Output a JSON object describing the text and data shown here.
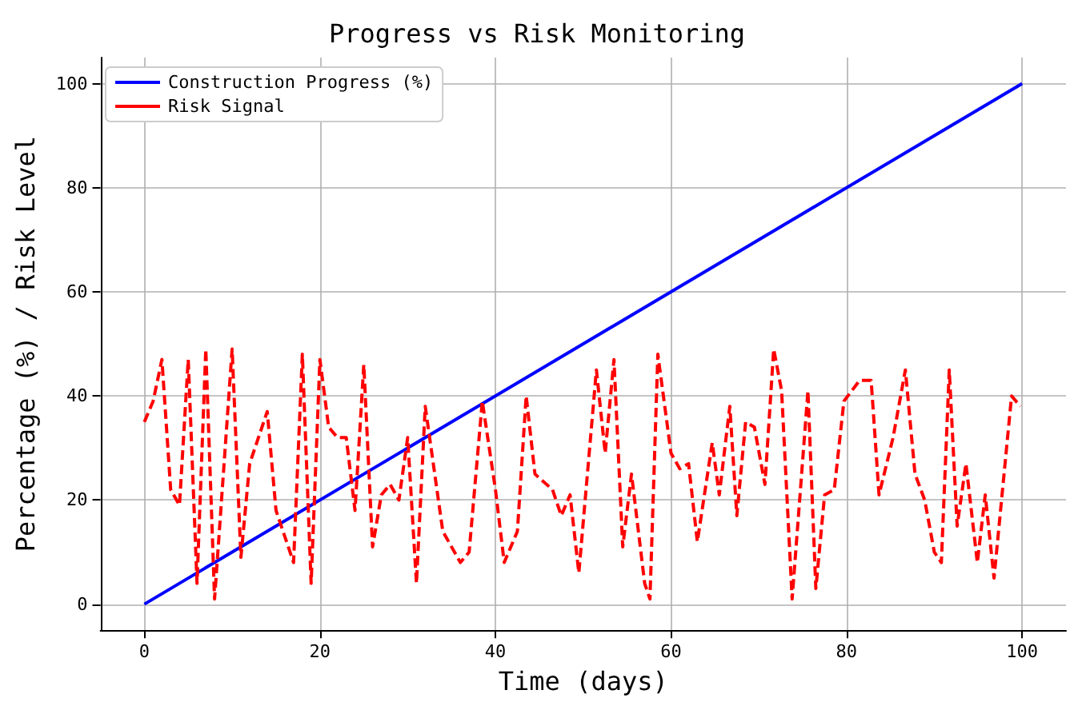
{
  "chart_data": {
    "type": "line",
    "title": "Progress vs Risk Monitoring",
    "xlabel": "Time (days)",
    "ylabel": "Percentage (%) / Risk Level",
    "xlim": [
      -5,
      105
    ],
    "ylim": [
      -5,
      105
    ],
    "xticks": [
      0,
      20,
      40,
      60,
      80,
      100
    ],
    "yticks": [
      0,
      20,
      40,
      60,
      80,
      100
    ],
    "grid": true,
    "legend": "top left",
    "series": [
      {
        "name": "Construction Progress (%)",
        "color": "#0000ff",
        "line_style": "solid",
        "x": [
          0,
          100
        ],
        "values": [
          0,
          100
        ]
      },
      {
        "name": "Risk Signal",
        "color": "#ff0000",
        "line_style": "dashed",
        "x": [
          0,
          1,
          2,
          3,
          4,
          5,
          6,
          7,
          8,
          10,
          11,
          12,
          14,
          15,
          17,
          18,
          19,
          20,
          21,
          22,
          23,
          24,
          25,
          26,
          27,
          28,
          29,
          30,
          31,
          32,
          34,
          36,
          37,
          38.5,
          40,
          41,
          42.5,
          43.5,
          44.5,
          46.5,
          47.5,
          48.5,
          49.5,
          51.5,
          52.5,
          53.5,
          54.5,
          55.5,
          57,
          57.6,
          58.5,
          60,
          61,
          62,
          63,
          64.7,
          65.5,
          66.7,
          67.5,
          68.5,
          69.5,
          70.7,
          71.7,
          72.6,
          73.8,
          75.6,
          76.5,
          77.5,
          78.6,
          79.7,
          81.5,
          82.8,
          83.7,
          85.3,
          86.7,
          87.8,
          88.9,
          90,
          90.8,
          91.7,
          92.6,
          93.6,
          94.9,
          95.8,
          96.8,
          98.8,
          99.8
        ],
        "values": [
          35,
          39,
          47,
          22,
          19,
          47,
          4,
          49,
          1,
          49,
          9,
          27,
          37,
          18,
          8,
          48,
          4,
          47,
          34,
          32,
          32,
          18,
          46,
          11,
          21,
          23,
          20,
          32,
          4,
          38,
          14,
          8,
          10,
          39,
          22,
          8,
          14,
          40,
          25,
          22,
          17,
          21,
          6,
          45,
          29,
          47,
          11,
          25,
          4,
          1,
          48,
          29,
          26,
          27,
          12,
          31,
          21,
          38,
          17,
          35,
          34,
          23,
          49,
          41,
          1,
          41,
          3,
          21,
          22,
          39,
          43,
          43,
          21,
          32,
          45,
          25,
          20,
          10,
          8,
          45,
          15,
          27,
          8,
          21,
          5,
          40,
          38
        ]
      }
    ]
  }
}
